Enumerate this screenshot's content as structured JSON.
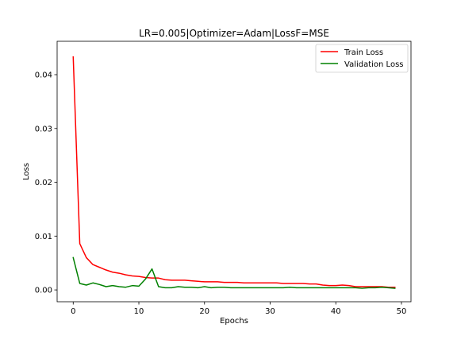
{
  "chart_data": {
    "type": "line",
    "title": "LR=0.005|Optimizer=Adam|LossF=MSE",
    "xlabel": "Epochs",
    "ylabel": "Loss",
    "xlim": [
      -2.45,
      51.45
    ],
    "ylim": [
      -0.0022,
      0.0462
    ],
    "xticks": [
      0,
      10,
      20,
      30,
      40,
      50
    ],
    "yticks": [
      0.0,
      0.01,
      0.02,
      0.03,
      0.04
    ],
    "xtick_labels": [
      "0",
      "10",
      "20",
      "30",
      "40",
      "50"
    ],
    "ytick_labels": [
      "0.00",
      "0.01",
      "0.02",
      "0.03",
      "0.04"
    ],
    "legend_position": "top-right",
    "x": [
      0,
      1,
      2,
      3,
      4,
      5,
      6,
      7,
      8,
      9,
      10,
      11,
      12,
      13,
      14,
      15,
      16,
      17,
      18,
      19,
      20,
      21,
      22,
      23,
      24,
      25,
      26,
      27,
      28,
      29,
      30,
      31,
      32,
      33,
      34,
      35,
      36,
      37,
      38,
      39,
      40,
      41,
      42,
      43,
      44,
      45,
      46,
      47,
      48,
      49
    ],
    "series": [
      {
        "name": "Train Loss",
        "color": "#ff0000",
        "values": [
          0.0433,
          0.0086,
          0.006,
          0.0047,
          0.0042,
          0.0037,
          0.0033,
          0.0031,
          0.0028,
          0.0026,
          0.0025,
          0.0023,
          0.0022,
          0.0022,
          0.0019,
          0.0018,
          0.0018,
          0.0018,
          0.0017,
          0.0016,
          0.0015,
          0.0015,
          0.0015,
          0.0014,
          0.0014,
          0.0014,
          0.0013,
          0.0013,
          0.0013,
          0.0013,
          0.0013,
          0.0013,
          0.0012,
          0.0012,
          0.0012,
          0.0012,
          0.0011,
          0.0011,
          0.0009,
          0.0008,
          0.0008,
          0.0009,
          0.0008,
          0.0006,
          0.0006,
          0.0006,
          0.0006,
          0.0006,
          0.0005,
          0.0005
        ]
      },
      {
        "name": "Validation Loss",
        "color": "#008000",
        "values": [
          0.006,
          0.0012,
          0.0009,
          0.0013,
          0.001,
          0.0006,
          0.0008,
          0.0006,
          0.0005,
          0.0008,
          0.0007,
          0.002,
          0.0039,
          0.0006,
          0.0004,
          0.0004,
          0.0006,
          0.0005,
          0.0005,
          0.0004,
          0.0006,
          0.0004,
          0.0005,
          0.0005,
          0.0004,
          0.0004,
          0.0004,
          0.0004,
          0.0004,
          0.0004,
          0.0004,
          0.0004,
          0.0004,
          0.0005,
          0.0004,
          0.0004,
          0.0004,
          0.0004,
          0.0004,
          0.0004,
          0.0004,
          0.0004,
          0.0004,
          0.0004,
          0.0003,
          0.0004,
          0.0004,
          0.0005,
          0.0004,
          0.0003
        ]
      }
    ]
  }
}
